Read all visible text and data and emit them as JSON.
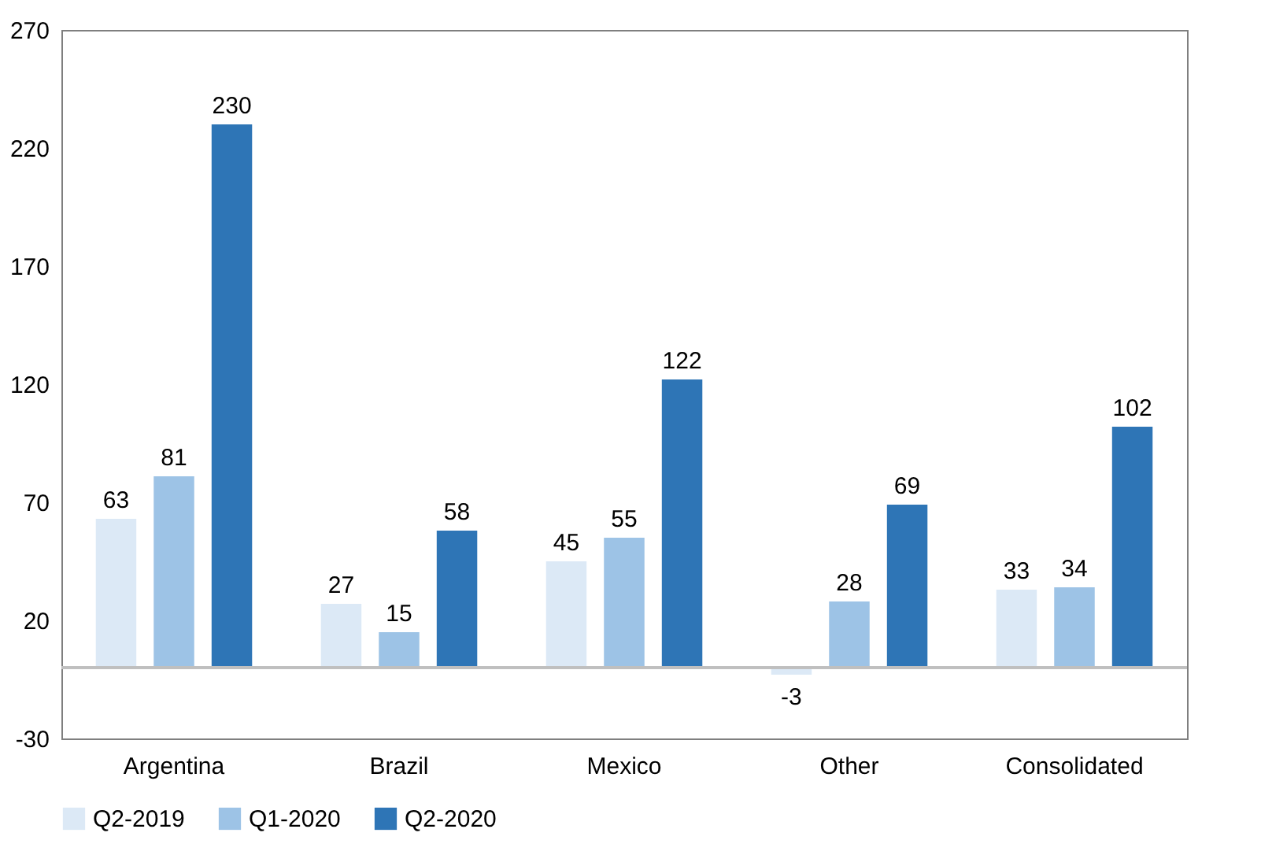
{
  "chart_data": {
    "type": "bar",
    "categories": [
      "Argentina",
      "Brazil",
      "Mexico",
      "Other",
      "Consolidated"
    ],
    "series": [
      {
        "name": "Q2-2019",
        "color": "#dce9f6",
        "values": [
          63,
          27,
          45,
          -3,
          33
        ]
      },
      {
        "name": "Q1-2020",
        "color": "#9dc3e6",
        "values": [
          81,
          15,
          55,
          28,
          34
        ]
      },
      {
        "name": "Q2-2020",
        "color": "#2e75b6",
        "values": [
          230,
          58,
          122,
          69,
          102
        ]
      }
    ],
    "ylim": [
      -30,
      270
    ],
    "yticks": [
      -30,
      20,
      70,
      120,
      170,
      220,
      270
    ],
    "data_labels": true,
    "legend": "bottom",
    "grid": false,
    "ref_lines": [
      {
        "axis": "y",
        "value": 0
      }
    ]
  }
}
